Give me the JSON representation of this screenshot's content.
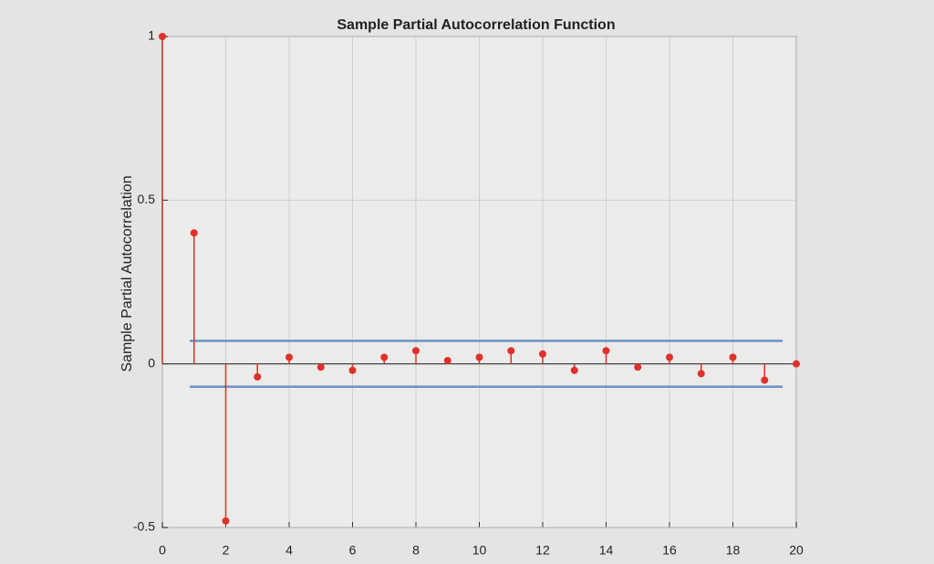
{
  "chart_data": {
    "type": "stem",
    "title": "Sample Partial Autocorrelation Function",
    "y_label": "Sample Partial Autocorrelation",
    "x": [
      0,
      1,
      2,
      3,
      4,
      5,
      6,
      7,
      8,
      9,
      10,
      11,
      12,
      13,
      14,
      15,
      16,
      17,
      18,
      19,
      20
    ],
    "values": [
      1,
      0.4,
      -0.48,
      -0.04,
      0.02,
      -0.01,
      -0.02,
      0.02,
      0.04,
      0.01,
      0.02,
      0.04,
      0.03,
      -0.02,
      0.04,
      -0.01,
      0.02,
      -0.03,
      0.02,
      -0.05,
      0.0
    ],
    "color": "#e0302a",
    "confidence_bounds": [
      0.07,
      -0.07
    ],
    "bounds_color": "#6f8fc8",
    "xlim": [
      0,
      20
    ],
    "xticks": [
      0,
      2,
      4,
      6,
      8,
      10,
      12,
      14,
      16,
      18,
      20
    ],
    "ylim": [
      -0.5,
      1
    ],
    "yticks": [
      -0.5,
      0,
      0.5,
      1
    ],
    "grid": true
  }
}
